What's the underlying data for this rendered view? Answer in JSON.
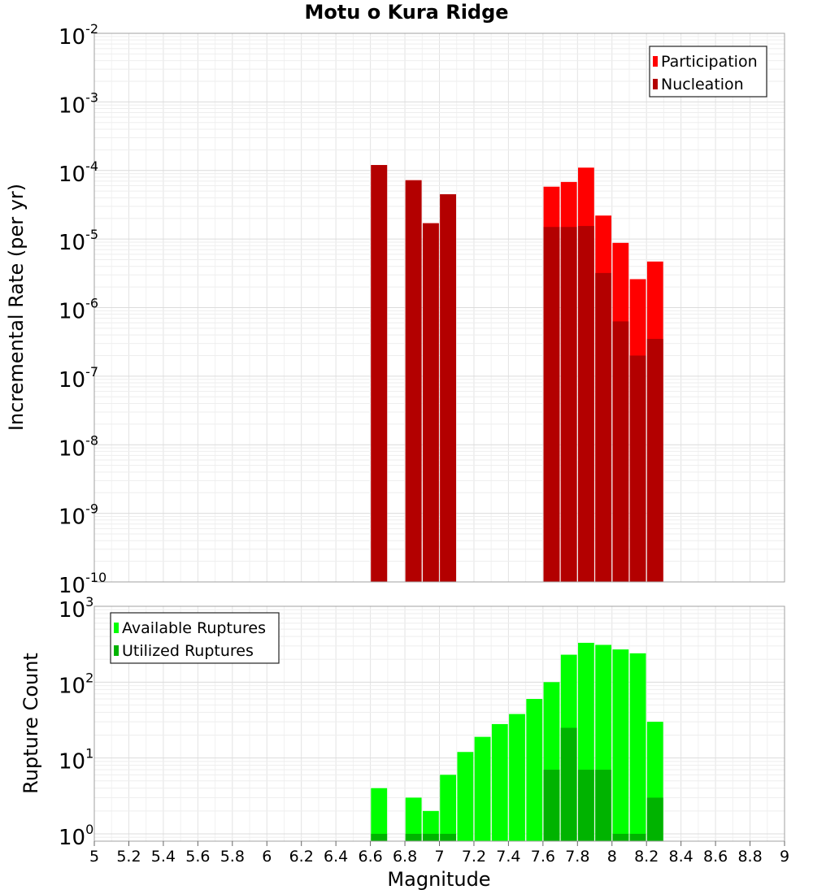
{
  "chart_data": [
    {
      "type": "bar",
      "title": "Motu o Kura Ridge",
      "ylabel": "Incremental Rate (per yr)",
      "y_scale": "log",
      "ylim": [
        1e-10,
        0.01
      ],
      "xlim": [
        5,
        9
      ],
      "grid": true,
      "legend_position": "top-right",
      "colors": {
        "Participation": "#ff0000",
        "Nucleation": "#b30000"
      },
      "x": [
        6.65,
        6.85,
        6.95,
        7.05,
        7.65,
        7.75,
        7.85,
        7.95,
        8.05,
        8.15,
        8.25
      ],
      "series": [
        {
          "name": "Participation",
          "values": [
            0.00012,
            7.2e-05,
            1.7e-05,
            4.5e-05,
            5.8e-05,
            6.8e-05,
            0.00011,
            2.2e-05,
            8.8e-06,
            2.6e-06,
            4.7e-06
          ]
        },
        {
          "name": "Nucleation",
          "values": [
            0.00012,
            7.2e-05,
            1.7e-05,
            4.5e-05,
            1.5e-05,
            1.5e-05,
            1.55e-05,
            3.2e-06,
            6.3e-07,
            2e-07,
            3.5e-07
          ]
        }
      ]
    },
    {
      "type": "bar",
      "xlabel": "Magnitude",
      "ylabel": "Rupture Count",
      "y_scale": "log",
      "ylim": [
        0.8,
        1000
      ],
      "xlim": [
        5,
        9
      ],
      "grid": true,
      "legend_position": "top-left",
      "colors": {
        "Available Ruptures": "#00ff00",
        "Utilized Ruptures": "#00b300"
      },
      "x": [
        6.65,
        6.85,
        6.95,
        7.05,
        7.15,
        7.25,
        7.35,
        7.45,
        7.55,
        7.65,
        7.75,
        7.85,
        7.95,
        8.05,
        8.15,
        8.25
      ],
      "series": [
        {
          "name": "Available Ruptures",
          "values": [
            4,
            3,
            2,
            6,
            12,
            19,
            28,
            38,
            60,
            100,
            230,
            330,
            310,
            270,
            240,
            30
          ]
        },
        {
          "name": "Utilized Ruptures",
          "values": [
            1,
            1,
            1,
            1,
            0,
            0,
            0,
            0,
            0,
            7,
            25,
            7,
            7,
            1,
            1,
            3
          ]
        }
      ]
    }
  ],
  "x_ticks": [
    "5",
    "5.2",
    "5.4",
    "5.6",
    "5.8",
    "6",
    "6.2",
    "6.4",
    "6.6",
    "6.8",
    "7",
    "7.2",
    "7.4",
    "7.6",
    "7.8",
    "8",
    "8.2",
    "8.4",
    "8.6",
    "8.8",
    "9"
  ],
  "top_y_ticks": [
    {
      "base": "10",
      "exp": "-2"
    },
    {
      "base": "10",
      "exp": "-3"
    },
    {
      "base": "10",
      "exp": "-4"
    },
    {
      "base": "10",
      "exp": "-5"
    },
    {
      "base": "10",
      "exp": "-6"
    },
    {
      "base": "10",
      "exp": "-7"
    },
    {
      "base": "10",
      "exp": "-8"
    },
    {
      "base": "10",
      "exp": "-9"
    },
    {
      "base": "10",
      "exp": "-10"
    }
  ],
  "bottom_y_ticks": [
    {
      "base": "10",
      "exp": "3"
    },
    {
      "base": "10",
      "exp": "2"
    },
    {
      "base": "10",
      "exp": "1"
    },
    {
      "base": "10",
      "exp": "0"
    }
  ]
}
